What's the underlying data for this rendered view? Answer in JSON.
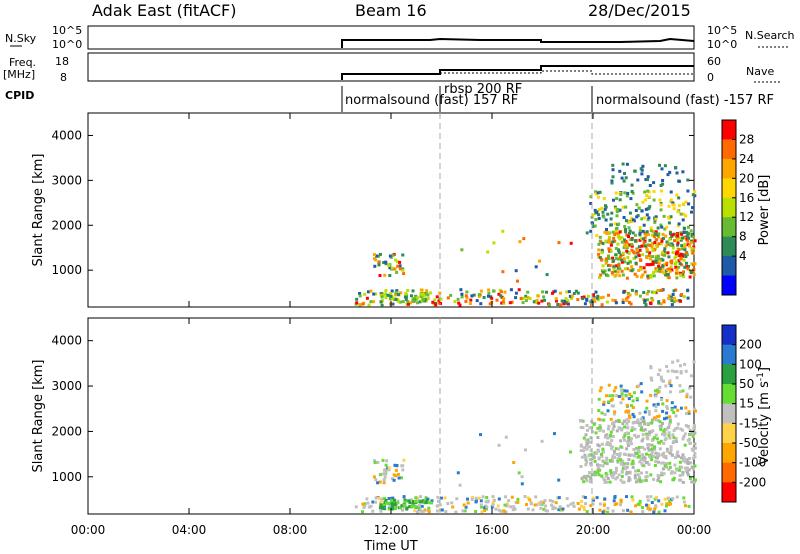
{
  "header": {
    "title": "Adak East (fitACF)",
    "beam": "Beam 16",
    "date": "28/Dec/2015"
  },
  "strips": {
    "nsky_label": "N.Sky",
    "nsky_ticks": [
      "10^5",
      "10^0"
    ],
    "nsearch_label": "N.Search",
    "nsearch_ticks": [
      "10^5",
      "10^0"
    ],
    "freq_label": "Freq.",
    "freq_unit": "[MHz]",
    "freq_ticks": [
      "18",
      "8"
    ],
    "nave_label": "Nave",
    "nave_ticks": [
      "60",
      "0"
    ],
    "cpid_label": "CPID",
    "cpid_segments": [
      "normalsound (fast) 157 RF",
      "rbsp 200 RF",
      "normalsound (fast) -157 RF"
    ]
  },
  "chart_data": [
    {
      "type": "heatmap",
      "name": "power-panel",
      "ylabel": "Slant Range [km]",
      "yticks": [
        "4000",
        "3000",
        "2000",
        "1000"
      ],
      "ylim": [
        180,
        4500
      ],
      "colorbar_label": "Power [dB]",
      "colorbar_ticks": [
        "28",
        "24",
        "20",
        "16",
        "12",
        "8",
        "4"
      ],
      "colorbar_colors": [
        "#ff0000",
        "#ff6a00",
        "#ffa500",
        "#ffd700",
        "#b8e000",
        "#66bb33",
        "#2e8b57",
        "#1e5aa8",
        "#0000ff"
      ]
    },
    {
      "type": "heatmap",
      "name": "velocity-panel",
      "ylabel": "Slant Range [km]",
      "yticks": [
        "4000",
        "3000",
        "2000",
        "1000"
      ],
      "ylim": [
        180,
        4500
      ],
      "colorbar_label": "Velocity [m s",
      "colorbar_label_sup": "-1",
      "colorbar_label_tail": "]",
      "colorbar_ticks": [
        "200",
        "100",
        "50",
        "15",
        "-15",
        "-50",
        "-100",
        "-200"
      ],
      "colorbar_colors": [
        "#1530c8",
        "#2a7ad0",
        "#2ba040",
        "#66dd33",
        "#c0c0c0",
        "#ffd24a",
        "#ffa500",
        "#ff6a00",
        "#ff0000"
      ]
    }
  ],
  "xaxis": {
    "label": "Time UT",
    "ticks": [
      "00:00",
      "04:00",
      "08:00",
      "12:00",
      "16:00",
      "20:00",
      "00:00"
    ]
  }
}
